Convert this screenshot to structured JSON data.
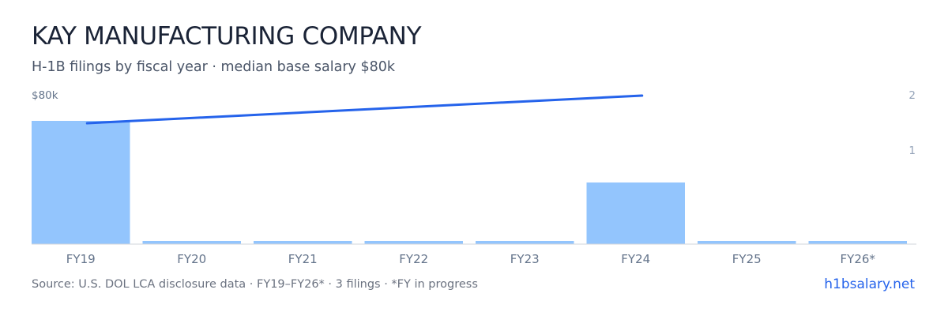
{
  "header": {
    "title": "KAY MANUFACTURING COMPANY",
    "subtitle": "H-1B filings by fiscal year · median base salary $80k"
  },
  "footer": {
    "source": "Source: U.S. DOL LCA disclosure data · FY19–FY26* · 3 filings · *FY in progress",
    "brand": "h1bsalary.net"
  },
  "colors": {
    "bar": "#93c5fd",
    "line": "#2563eb",
    "axis_text": "#64748b",
    "tick_text": "#94a3b8",
    "baseline": "#d1d5db"
  },
  "chart_data": {
    "type": "bar",
    "categories": [
      "FY19",
      "FY20",
      "FY21",
      "FY22",
      "FY23",
      "FY24",
      "FY25",
      "FY26*"
    ],
    "series": [
      {
        "values": [
          2,
          0,
          0,
          0,
          0,
          1,
          0,
          0
        ]
      }
    ],
    "right_axis": {
      "ticks": [
        "2",
        "1"
      ],
      "ylim": [
        0,
        2
      ]
    },
    "left_axis": {
      "label": "$80k"
    },
    "line": {
      "x_start": "FY19",
      "x_end": "FY24",
      "trend": "rising"
    },
    "grid": false
  }
}
